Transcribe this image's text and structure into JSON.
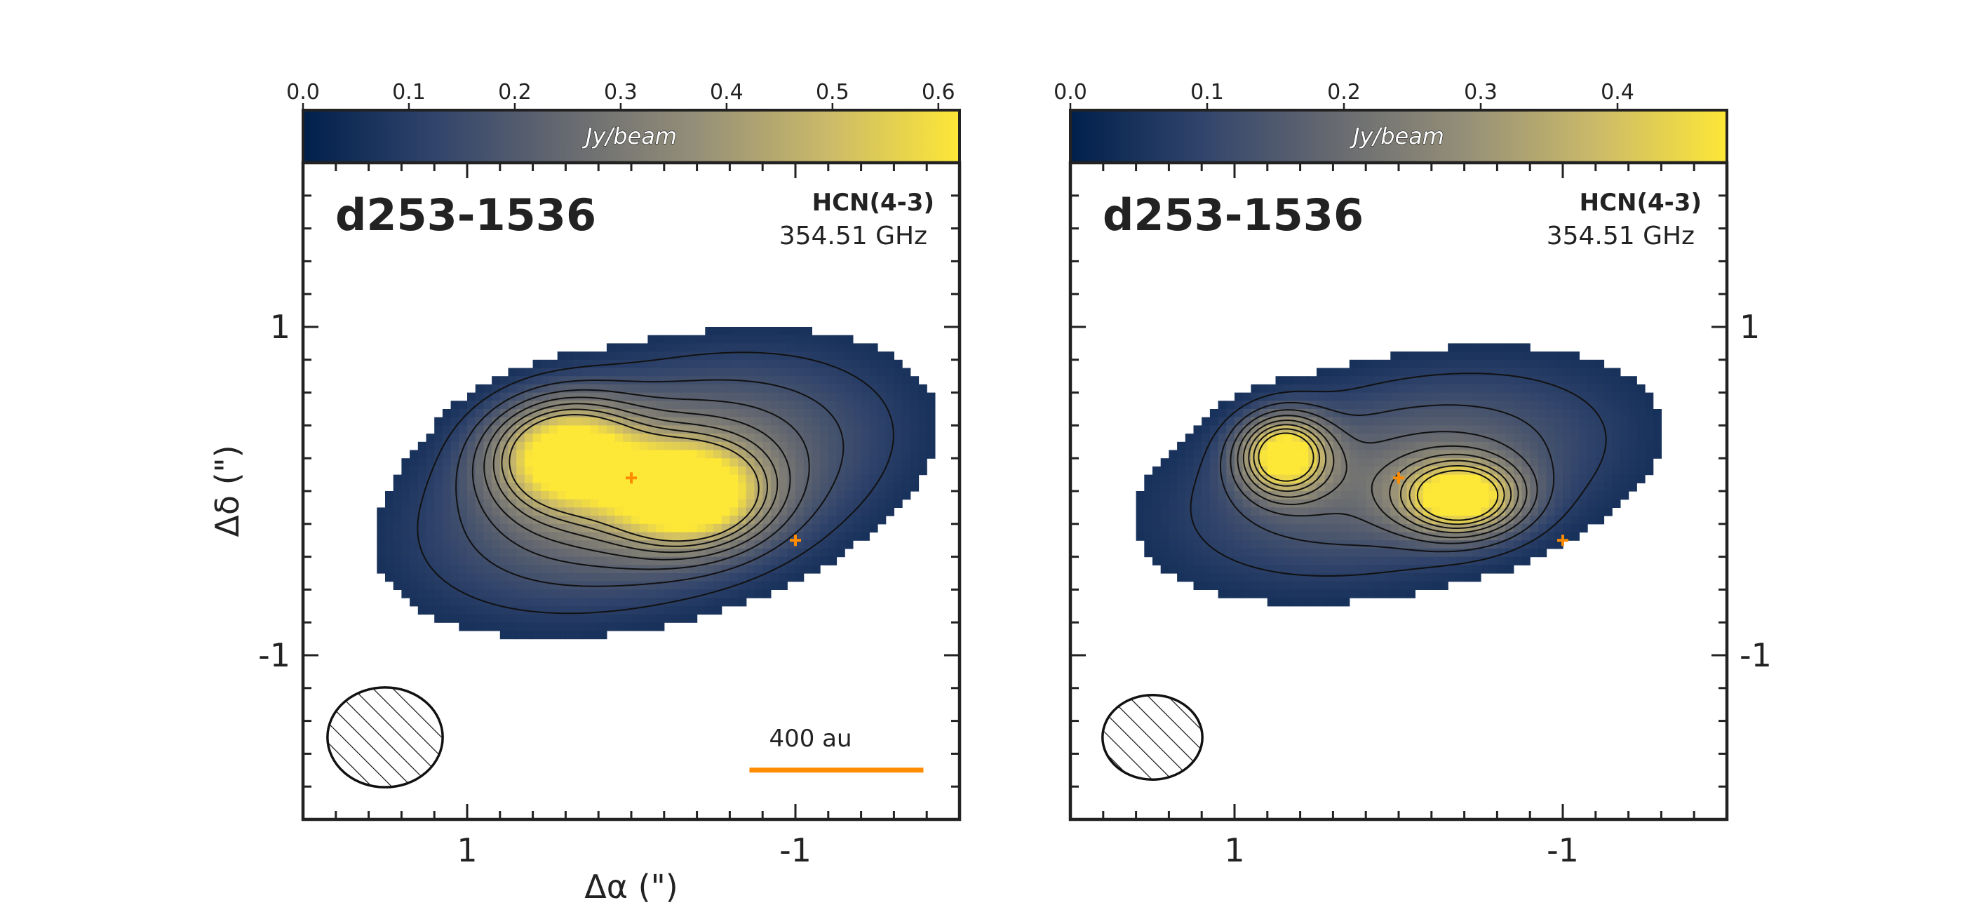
{
  "chart_data": [
    {
      "type": "heatmap",
      "title": "d253-1536",
      "line_name": "HCN(4-3)",
      "frequency": "354.51 GHz",
      "colorbar": {
        "label": "Jy/beam",
        "ticks": [
          "0.0",
          "0.1",
          "0.2",
          "0.3",
          "0.4",
          "0.5",
          "0.6"
        ],
        "range": [
          0.0,
          0.62
        ],
        "colormap": [
          "#00204c",
          "#31446b",
          "#666970",
          "#958f78",
          "#cbba69",
          "#fde737"
        ],
        "position": "top"
      },
      "xlabel": "Δα (\")",
      "ylabel": "Δδ (\")",
      "xticks": [
        "1",
        "-1"
      ],
      "yticks": [
        "1",
        "-1"
      ],
      "xlim": [
        2.0,
        -2.0
      ],
      "ylim": [
        -2.0,
        2.0
      ],
      "emission": {
        "peaks": [
          {
            "x": 0.4,
            "y": 0.22,
            "peak": 0.56,
            "sx": 0.3,
            "sy": 0.22
          },
          {
            "x": -0.34,
            "y": -0.02,
            "peak": 0.6,
            "sx": 0.3,
            "sy": 0.2
          }
        ],
        "envelope": {
          "x": -0.15,
          "y": 0.05,
          "peak": 0.34,
          "sx": 0.95,
          "sy": 0.46,
          "angle_deg": -15
        },
        "mask_level": 0.06
      },
      "contour_levels": [
        0.1,
        0.16,
        0.22,
        0.28,
        0.34,
        0.4,
        0.46
      ],
      "markers": [
        {
          "x": 0.0,
          "y": 0.08,
          "label": "+"
        },
        {
          "x": -1.0,
          "y": -0.3,
          "label": "+"
        }
      ],
      "beam": {
        "x": 1.5,
        "y": -1.5,
        "major": 0.6,
        "minor": 0.52,
        "angle_deg": 0
      },
      "scale_bar": {
        "label": "400 au",
        "x_start": -1.78,
        "x_end": -0.72,
        "y": -1.7
      },
      "y_tick_side": "left",
      "show_xlabel": true
    },
    {
      "type": "heatmap",
      "title": "d253-1536",
      "line_name": "HCN(4-3)",
      "frequency": "354.51 GHz",
      "colorbar": {
        "label": "Jy/beam",
        "ticks": [
          "0.0",
          "0.1",
          "0.2",
          "0.3",
          "0.4"
        ],
        "range": [
          0.0,
          0.48
        ],
        "colormap": [
          "#00204c",
          "#31446b",
          "#666970",
          "#958f78",
          "#cbba69",
          "#fde737"
        ],
        "position": "top"
      },
      "xlabel": "",
      "ylabel": "",
      "xticks": [
        "1",
        "-1"
      ],
      "yticks": [
        "1",
        "-1"
      ],
      "xlim": [
        2.0,
        -2.0
      ],
      "ylim": [
        -2.0,
        2.0
      ],
      "emission": {
        "peaks": [
          {
            "x": 0.7,
            "y": 0.22,
            "peak": 0.46,
            "sx": 0.18,
            "sy": 0.16
          },
          {
            "x": -0.38,
            "y": -0.04,
            "peak": 0.45,
            "sx": 0.24,
            "sy": 0.15
          }
        ],
        "envelope": {
          "x": 0.0,
          "y": 0.1,
          "peak": 0.2,
          "sx": 0.95,
          "sy": 0.42,
          "angle_deg": -12
        },
        "mask_level": 0.045
      },
      "contour_levels": [
        0.08,
        0.13,
        0.18,
        0.23,
        0.28,
        0.33,
        0.38,
        0.43
      ],
      "markers": [
        {
          "x": 0.0,
          "y": 0.08,
          "label": "+"
        },
        {
          "x": -1.0,
          "y": -0.3,
          "label": "+"
        }
      ],
      "beam": {
        "x": 1.5,
        "y": -1.5,
        "major": 0.52,
        "minor": 0.44,
        "angle_deg": 0
      },
      "scale_bar": null,
      "y_tick_side": "right",
      "show_xlabel": false
    }
  ]
}
